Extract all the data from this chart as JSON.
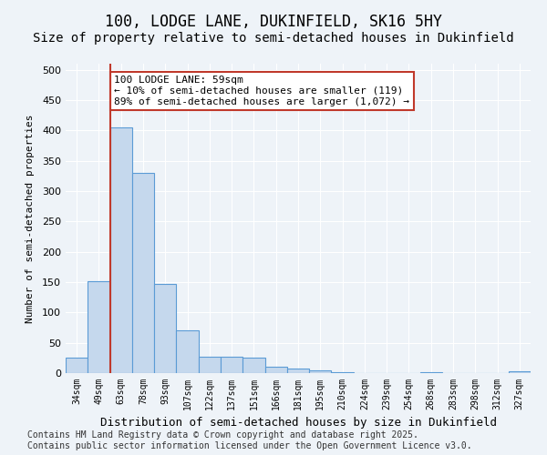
{
  "title1": "100, LODGE LANE, DUKINFIELD, SK16 5HY",
  "title2": "Size of property relative to semi-detached houses in Dukinfield",
  "xlabel": "Distribution of semi-detached houses by size in Dukinfield",
  "ylabel": "Number of semi-detached properties",
  "categories": [
    "34sqm",
    "49sqm",
    "63sqm",
    "78sqm",
    "93sqm",
    "107sqm",
    "122sqm",
    "137sqm",
    "151sqm",
    "166sqm",
    "181sqm",
    "195sqm",
    "210sqm",
    "224sqm",
    "239sqm",
    "254sqm",
    "268sqm",
    "283sqm",
    "298sqm",
    "312sqm",
    "327sqm"
  ],
  "values": [
    25,
    152,
    405,
    330,
    147,
    70,
    27,
    27,
    25,
    10,
    7,
    5,
    2,
    0,
    0,
    0,
    1,
    0,
    0,
    0,
    3
  ],
  "bar_color": "#c5d8ed",
  "bar_edge_color": "#5b9bd5",
  "vline_x": 1,
  "vline_color": "#c0392b",
  "annotation_text": "100 LODGE LANE: 59sqm\n← 10% of semi-detached houses are smaller (119)\n89% of semi-detached houses are larger (1,072) →",
  "annotation_box_color": "#c0392b",
  "ylim": [
    0,
    510
  ],
  "yticks": [
    0,
    50,
    100,
    150,
    200,
    250,
    300,
    350,
    400,
    450,
    500
  ],
  "footer": "Contains HM Land Registry data © Crown copyright and database right 2025.\nContains public sector information licensed under the Open Government Licence v3.0.",
  "bg_color": "#eef3f8",
  "grid_color": "#ffffff",
  "title1_fontsize": 12,
  "title2_fontsize": 10,
  "annotation_fontsize": 8,
  "footer_fontsize": 7
}
